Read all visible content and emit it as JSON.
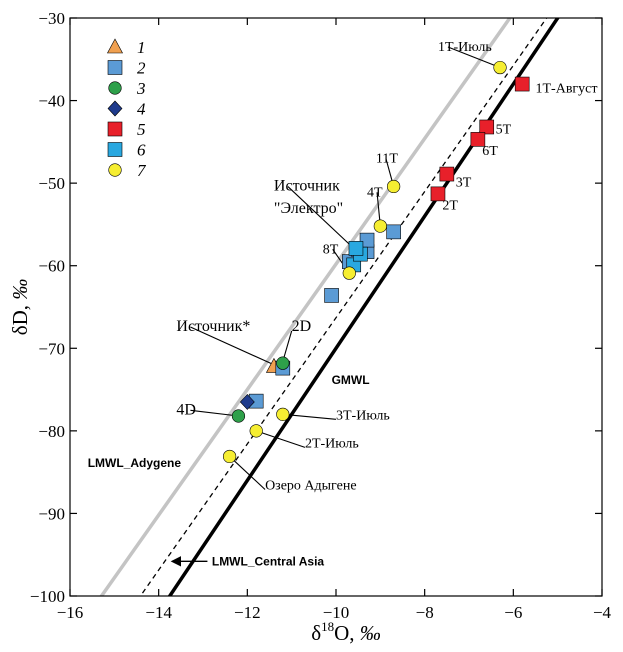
{
  "chart_data": {
    "type": "scatter",
    "xlim": [
      -16,
      -4
    ],
    "ylim": [
      -100,
      -30
    ],
    "x_ticks": [
      -16,
      -14,
      -12,
      -10,
      -8,
      -6,
      -4
    ],
    "y_ticks": [
      -100,
      -90,
      -80,
      -70,
      -60,
      -50,
      -40,
      -30
    ],
    "x_tick_labels": [
      "−16",
      "−14",
      "−12",
      "−10",
      "−8",
      "−6",
      "−4"
    ],
    "y_tick_labels": [
      "−100",
      "−90",
      "−80",
      "−70",
      "−60",
      "−50",
      "−40",
      "−30"
    ],
    "xlabel": {
      "prefix": "δ",
      "sup": "18",
      "main": "O, ",
      "unit": "‰"
    },
    "ylabel": {
      "main": "δD, ",
      "unit": "‰"
    },
    "grid": false,
    "legend_position": "top-left",
    "legend": [
      {
        "label": "1",
        "marker": "triangle",
        "color": "#f0a050"
      },
      {
        "label": "2",
        "marker": "square",
        "color": "#5b9bd5"
      },
      {
        "label": "3",
        "marker": "circle",
        "color": "#2ea04a"
      },
      {
        "label": "4",
        "marker": "diamond",
        "color": "#1f3b8c"
      },
      {
        "label": "5",
        "marker": "square",
        "color": "#e8202a"
      },
      {
        "label": "6",
        "marker": "square",
        "color": "#29a8e0"
      },
      {
        "label": "7",
        "marker": "circle",
        "color": "#f6ee32"
      }
    ],
    "lines": [
      {
        "name": "GMWL",
        "slope": 8,
        "intercept": 10,
        "color": "#000000",
        "width": 3.5,
        "dash": "none"
      },
      {
        "name": "LMWL_Adygene",
        "slope": 7.6,
        "intercept": 16.2,
        "color": "#c4c4c4",
        "width": 3.5,
        "dash": "none"
      },
      {
        "name": "LMWL_Central Asia",
        "slope": 7.64,
        "intercept": 10.1,
        "color": "#000000",
        "width": 1.3,
        "dash": "5,4"
      }
    ],
    "series": [
      {
        "group": "1",
        "points": [
          {
            "x": -11.4,
            "y": -72.2
          }
        ]
      },
      {
        "group": "2",
        "points": [
          {
            "x": -11.8,
            "y": -76.4
          },
          {
            "x": -10.1,
            "y": -63.6
          },
          {
            "x": -9.7,
            "y": -59.5
          },
          {
            "x": -9.5,
            "y": -58
          },
          {
            "x": -9.3,
            "y": -58.3
          },
          {
            "x": -9.3,
            "y": -56.9
          },
          {
            "x": -8.7,
            "y": -55.9
          },
          {
            "x": -11.2,
            "y": -72.4
          }
        ]
      },
      {
        "group": "3",
        "points": [
          {
            "x": -11.2,
            "y": -71.8
          },
          {
            "x": -12.2,
            "y": -78.2
          }
        ]
      },
      {
        "group": "4",
        "points": [
          {
            "x": -12,
            "y": -76.5
          }
        ]
      },
      {
        "group": "5",
        "points": [
          {
            "x": -5.8,
            "y": -38
          },
          {
            "x": -6.6,
            "y": -43.2
          },
          {
            "x": -6.8,
            "y": -44.7
          },
          {
            "x": -7.5,
            "y": -48.9
          },
          {
            "x": -7.7,
            "y": -51.3
          }
        ]
      },
      {
        "group": "6",
        "points": [
          {
            "x": -9.6,
            "y": -59.9
          },
          {
            "x": -9.45,
            "y": -58.6
          },
          {
            "x": -9.55,
            "y": -57.9
          }
        ]
      },
      {
        "group": "7",
        "points": [
          {
            "x": -6.3,
            "y": -36
          },
          {
            "x": -8.7,
            "y": -50.4
          },
          {
            "x": -9,
            "y": -55.2
          },
          {
            "x": -9.7,
            "y": -60.9
          },
          {
            "x": -11.2,
            "y": -78
          },
          {
            "x": -11.8,
            "y": -80
          },
          {
            "x": -12.4,
            "y": -83.1
          }
        ]
      }
    ],
    "annotations": [
      {
        "text": "1Т-Июль",
        "tx": -7.7,
        "ty": -34,
        "px": -6.3,
        "py": -36,
        "size": "small"
      },
      {
        "text": "1Т-Август",
        "tx": -5.5,
        "ty": -39,
        "px": null,
        "py": null,
        "size": "small"
      },
      {
        "text": "5Т",
        "tx": -6.4,
        "ty": -44,
        "px": null,
        "py": null,
        "size": "small"
      },
      {
        "text": "6Т",
        "tx": -6.7,
        "ty": -46.6,
        "px": null,
        "py": null,
        "size": "small"
      },
      {
        "text": "3Т",
        "tx": -7.3,
        "ty": -50.4,
        "px": null,
        "py": null,
        "size": "small"
      },
      {
        "text": "2Т",
        "tx": -7.6,
        "ty": -53.2,
        "px": null,
        "py": null,
        "size": "small"
      },
      {
        "text": "11Т",
        "tx": -9.1,
        "ty": -47.5,
        "px": -8.7,
        "py": -50.4,
        "size": "small"
      },
      {
        "text": "4Т",
        "tx": -9.3,
        "ty": -51.6,
        "px": -9,
        "py": -55.2,
        "size": "small"
      },
      {
        "text": "8Т",
        "tx": -10.3,
        "ty": -58.5,
        "px": -9.7,
        "py": -60.9,
        "size": "small"
      },
      {
        "text": "Источник",
        "tx": -11.4,
        "ty": -50.9,
        "px": -9.5,
        "py": -58.4,
        "size": "big"
      },
      {
        "text": "\"Электро\"",
        "tx": -11.4,
        "ty": -53.6,
        "px": null,
        "py": null,
        "size": "big"
      },
      {
        "text": "Источник*",
        "tx": -13.6,
        "ty": -67.9,
        "px": -11.4,
        "py": -72,
        "size": "big"
      },
      {
        "text": "2D",
        "tx": -11,
        "ty": -67.9,
        "px": -11.2,
        "py": -71.6,
        "size": "big"
      },
      {
        "text": "4D",
        "tx": -13.6,
        "ty": -78,
        "px": -12.2,
        "py": -78.2,
        "size": "big"
      },
      {
        "text": "3Т-Июль",
        "tx": -10,
        "ty": -78.6,
        "px": -11.2,
        "py": -78,
        "size": "small"
      },
      {
        "text": "2Т-Июль",
        "tx": -10.7,
        "ty": -82,
        "px": -11.8,
        "py": -80,
        "size": "small"
      },
      {
        "text": "Озеро Адыгене",
        "tx": -11.6,
        "ty": -87.1,
        "px": -12.4,
        "py": -83.1,
        "size": "small"
      }
    ],
    "line_labels": [
      {
        "text": "GMWL",
        "tx": -10.1,
        "ty": -74.3
      },
      {
        "text": "LMWL_Adygene",
        "tx": -15.6,
        "ty": -84.4
      },
      {
        "text": "LMWL_Central Asia",
        "tx": -12.8,
        "ty": -96.3
      }
    ],
    "central_asia_arrow": {
      "x1": -12.9,
      "y1": -95.8,
      "x2": -13.7,
      "y2": -95.8
    }
  }
}
